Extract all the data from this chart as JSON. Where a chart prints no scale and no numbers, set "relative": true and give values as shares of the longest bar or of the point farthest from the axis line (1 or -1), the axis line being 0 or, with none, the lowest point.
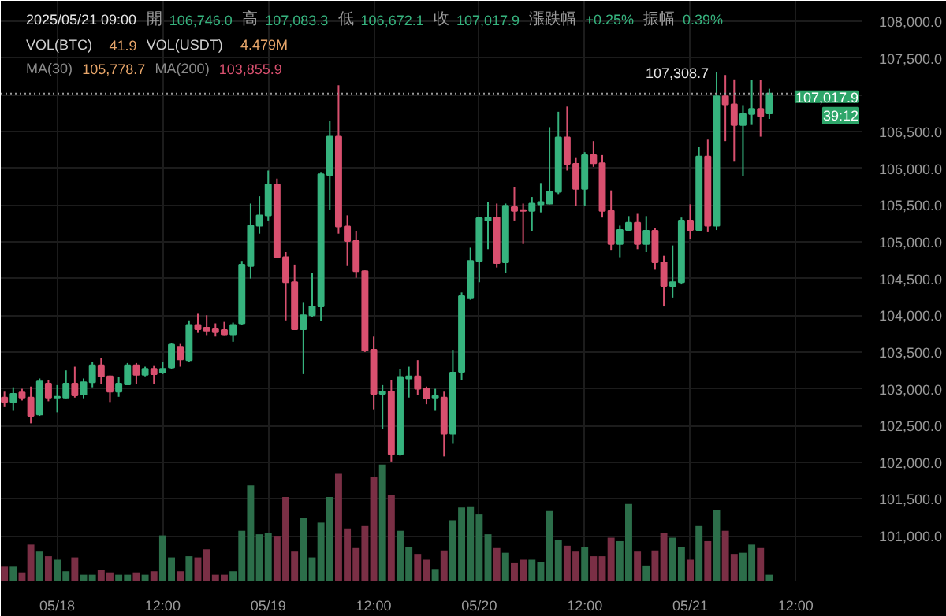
{
  "chart_data": [
    {
      "type": "candlestick",
      "x": [
        "2025-05-17T18:00",
        "2025-05-17T19:00",
        "2025-05-17T20:00",
        "2025-05-17T21:00",
        "2025-05-17T22:00",
        "2025-05-17T23:00",
        "2025-05-18T00:00",
        "2025-05-18T01:00",
        "2025-05-18T02:00",
        "2025-05-18T03:00",
        "2025-05-18T04:00",
        "2025-05-18T05:00",
        "2025-05-18T06:00",
        "2025-05-18T07:00",
        "2025-05-18T08:00",
        "2025-05-18T09:00",
        "2025-05-18T10:00",
        "2025-05-18T11:00",
        "2025-05-18T12:00",
        "2025-05-18T13:00",
        "2025-05-18T14:00",
        "2025-05-18T15:00",
        "2025-05-18T16:00",
        "2025-05-18T17:00",
        "2025-05-18T18:00",
        "2025-05-18T19:00",
        "2025-05-18T20:00",
        "2025-05-18T21:00",
        "2025-05-18T22:00",
        "2025-05-18T23:00",
        "2025-05-19T00:00",
        "2025-05-19T01:00",
        "2025-05-19T02:00",
        "2025-05-19T03:00",
        "2025-05-19T04:00",
        "2025-05-19T05:00",
        "2025-05-19T06:00",
        "2025-05-19T07:00",
        "2025-05-19T08:00",
        "2025-05-19T09:00",
        "2025-05-19T10:00",
        "2025-05-19T11:00",
        "2025-05-19T12:00",
        "2025-05-19T13:00",
        "2025-05-19T14:00",
        "2025-05-19T15:00",
        "2025-05-19T16:00",
        "2025-05-19T17:00",
        "2025-05-19T18:00",
        "2025-05-19T19:00",
        "2025-05-19T20:00",
        "2025-05-19T21:00",
        "2025-05-19T22:00",
        "2025-05-19T23:00",
        "2025-05-20T00:00",
        "2025-05-20T01:00",
        "2025-05-20T02:00",
        "2025-05-20T03:00",
        "2025-05-20T04:00",
        "2025-05-20T05:00",
        "2025-05-20T06:00",
        "2025-05-20T07:00",
        "2025-05-20T08:00",
        "2025-05-20T09:00",
        "2025-05-20T10:00",
        "2025-05-20T11:00",
        "2025-05-20T12:00",
        "2025-05-20T13:00",
        "2025-05-20T14:00",
        "2025-05-20T15:00",
        "2025-05-20T16:00",
        "2025-05-20T17:00",
        "2025-05-20T18:00",
        "2025-05-20T19:00",
        "2025-05-20T20:00",
        "2025-05-20T21:00",
        "2025-05-20T22:00",
        "2025-05-20T23:00",
        "2025-05-21T00:00",
        "2025-05-21T01:00",
        "2025-05-21T02:00",
        "2025-05-21T03:00",
        "2025-05-21T04:00",
        "2025-05-21T05:00",
        "2025-05-21T06:00",
        "2025-05-21T07:00",
        "2025-05-21T08:00",
        "2025-05-21T09:00"
      ],
      "ohlc": [
        [
          102880,
          102960,
          102750,
          102820
        ],
        [
          102820,
          103020,
          102700,
          102930
        ],
        [
          102950,
          103000,
          102840,
          102880
        ],
        [
          102880,
          103030,
          102530,
          102630
        ],
        [
          102650,
          103140,
          102630,
          103100
        ],
        [
          103070,
          103120,
          102830,
          102880
        ],
        [
          102880,
          103050,
          102680,
          102890
        ],
        [
          102880,
          103250,
          102870,
          103070
        ],
        [
          103070,
          103300,
          102880,
          102910
        ],
        [
          102920,
          103140,
          102870,
          103090
        ],
        [
          103090,
          103370,
          103020,
          103320
        ],
        [
          103320,
          103420,
          103070,
          103170
        ],
        [
          103170,
          103180,
          102820,
          102960
        ],
        [
          102960,
          103160,
          102890,
          103070
        ],
        [
          103060,
          103350,
          103050,
          103320
        ],
        [
          103320,
          103350,
          103070,
          103190
        ],
        [
          103190,
          103300,
          103170,
          103270
        ],
        [
          103270,
          103320,
          103060,
          103200
        ],
        [
          103220,
          103360,
          103200,
          103270
        ],
        [
          103290,
          103620,
          103270,
          103600
        ],
        [
          103570,
          103610,
          103300,
          103400
        ],
        [
          103390,
          103930,
          103370,
          103870
        ],
        [
          103870,
          104030,
          103760,
          103810
        ],
        [
          103830,
          104000,
          103730,
          103790
        ],
        [
          103810,
          103890,
          103710,
          103770
        ],
        [
          103800,
          103910,
          103730,
          103740
        ],
        [
          103740,
          103900,
          103640,
          103870
        ],
        [
          103890,
          104740,
          103870,
          104690
        ],
        [
          104670,
          105520,
          104500,
          105220
        ],
        [
          105220,
          105620,
          105110,
          105360
        ],
        [
          105360,
          105970,
          105290,
          105780
        ],
        [
          105780,
          105860,
          104780,
          104790
        ],
        [
          104790,
          104860,
          103930,
          104450
        ],
        [
          104450,
          104690,
          103800,
          103810
        ],
        [
          103810,
          104170,
          103200,
          104000
        ],
        [
          104000,
          104580,
          103980,
          104120
        ],
        [
          104120,
          105950,
          103920,
          105920
        ],
        [
          105910,
          106640,
          105430,
          106430
        ],
        [
          106430,
          107130,
          105110,
          105210
        ],
        [
          105210,
          105360,
          104670,
          105010
        ],
        [
          105010,
          105150,
          104510,
          104600
        ],
        [
          104600,
          104610,
          103500,
          103520
        ],
        [
          103530,
          103710,
          102720,
          102930
        ],
        [
          102930,
          103050,
          102450,
          102960
        ],
        [
          102960,
          103120,
          102010,
          102110
        ],
        [
          102110,
          103270,
          102090,
          103160
        ],
        [
          103140,
          103300,
          102880,
          103170
        ],
        [
          103170,
          103390,
          102910,
          103000
        ],
        [
          103000,
          103030,
          102790,
          102870
        ],
        [
          102880,
          103000,
          102700,
          102900
        ],
        [
          102880,
          102960,
          102080,
          102390
        ],
        [
          102390,
          103530,
          102250,
          103220
        ],
        [
          103230,
          104310,
          103120,
          104260
        ],
        [
          104240,
          104920,
          104210,
          104740
        ],
        [
          104740,
          105330,
          104450,
          105320
        ],
        [
          105290,
          105540,
          104900,
          105330
        ],
        [
          105330,
          105520,
          104650,
          104710
        ],
        [
          104720,
          105520,
          104580,
          105490
        ],
        [
          105470,
          105750,
          105290,
          105420
        ],
        [
          105430,
          105520,
          104970,
          105420
        ],
        [
          105420,
          105610,
          105150,
          105520
        ],
        [
          105510,
          105800,
          105400,
          105540
        ],
        [
          105520,
          106560,
          105510,
          105680
        ],
        [
          105680,
          106770,
          105650,
          106420
        ],
        [
          106420,
          106840,
          105970,
          106060
        ],
        [
          106060,
          106150,
          105490,
          105720
        ],
        [
          105720,
          106220,
          105490,
          106180
        ],
        [
          106180,
          106370,
          106020,
          106070
        ],
        [
          106070,
          106180,
          105330,
          105420
        ],
        [
          105420,
          105700,
          104880,
          104970
        ],
        [
          104970,
          105220,
          104790,
          105160
        ],
        [
          105160,
          105350,
          105150,
          105260
        ],
        [
          105260,
          105380,
          104900,
          104970
        ],
        [
          104970,
          105350,
          104860,
          105150
        ],
        [
          105150,
          105190,
          104620,
          104720
        ],
        [
          104720,
          104810,
          104120,
          104400
        ],
        [
          104400,
          104950,
          104240,
          104450
        ],
        [
          104450,
          105330,
          104420,
          105290
        ],
        [
          105290,
          105510,
          105040,
          105160
        ],
        [
          105160,
          106290,
          105150,
          106160
        ],
        [
          106160,
          106390,
          105140,
          105220
        ],
        [
          105220,
          107308.7,
          105160,
          106980
        ],
        [
          106980,
          107270,
          106370,
          106870
        ],
        [
          106870,
          107210,
          106090,
          106590
        ],
        [
          106590,
          106860,
          105900,
          106740
        ],
        [
          106740,
          107200,
          106590,
          106810
        ],
        [
          106810,
          107200,
          106430,
          106710
        ],
        [
          106746.0,
          107083.3,
          106672.1,
          107017.9
        ]
      ],
      "colors": [
        "#d9506f",
        "#36b37e",
        "#d9506f",
        "#d9506f",
        "#36b37e",
        "#d9506f",
        "#36b37e",
        "#36b37e",
        "#d9506f",
        "#36b37e",
        "#36b37e",
        "#d9506f",
        "#d9506f",
        "#36b37e",
        "#36b37e",
        "#d9506f",
        "#36b37e",
        "#d9506f",
        "#36b37e",
        "#36b37e",
        "#d9506f",
        "#36b37e",
        "#d9506f",
        "#d9506f",
        "#d9506f",
        "#d9506f",
        "#36b37e",
        "#36b37e",
        "#36b37e",
        "#36b37e",
        "#36b37e",
        "#d9506f",
        "#d9506f",
        "#d9506f",
        "#36b37e",
        "#36b37e",
        "#36b37e",
        "#36b37e",
        "#d9506f",
        "#d9506f",
        "#d9506f",
        "#d9506f",
        "#d9506f",
        "#36b37e",
        "#d9506f",
        "#36b37e",
        "#36b37e",
        "#d9506f",
        "#d9506f",
        "#36b37e",
        "#d9506f",
        "#36b37e",
        "#36b37e",
        "#36b37e",
        "#36b37e",
        "#36b37e",
        "#d9506f",
        "#36b37e",
        "#d9506f",
        "#d9506f",
        "#36b37e",
        "#36b37e",
        "#36b37e",
        "#36b37e",
        "#d9506f",
        "#d9506f",
        "#36b37e",
        "#d9506f",
        "#d9506f",
        "#d9506f",
        "#36b37e",
        "#36b37e",
        "#d9506f",
        "#36b37e",
        "#d9506f",
        "#d9506f",
        "#36b37e",
        "#36b37e",
        "#d9506f",
        "#36b37e",
        "#d9506f",
        "#36b37e",
        "#d9506f",
        "#d9506f",
        "#36b37e",
        "#36b37e",
        "#d9506f",
        "#36b37e"
      ],
      "xlim": [
        "2025-05-17T17:35",
        "2025-05-21T19:30"
      ],
      "xticks": [
        {
          "value": "2025-05-18T00:00",
          "label": "05/18"
        },
        {
          "value": "2025-05-18T12:00",
          "label": "12:00"
        },
        {
          "value": "2025-05-19T00:00",
          "label": "05/19"
        },
        {
          "value": "2025-05-19T12:00",
          "label": "12:00"
        },
        {
          "value": "2025-05-20T00:00",
          "label": "05/20"
        },
        {
          "value": "2025-05-20T12:00",
          "label": "12:00"
        },
        {
          "value": "2025-05-21T00:00",
          "label": "05/21"
        },
        {
          "value": "2025-05-21T12:00",
          "label": "12:00"
        }
      ],
      "ylim": [
        100390,
        108280
      ],
      "yticks": [
        {
          "value": 101000,
          "label": "101,000.0"
        },
        {
          "value": 101500,
          "label": "101,500.0"
        },
        {
          "value": 102000,
          "label": "102,000.0"
        },
        {
          "value": 102500,
          "label": "102,500.0"
        },
        {
          "value": 103000,
          "label": "103,000.0"
        },
        {
          "value": 103500,
          "label": "103,500.0"
        },
        {
          "value": 104000,
          "label": "104,000.0"
        },
        {
          "value": 104500,
          "label": "104,500.0"
        },
        {
          "value": 105000,
          "label": "105,000.0"
        },
        {
          "value": 105500,
          "label": "105,500.0"
        },
        {
          "value": 106000,
          "label": "106,000.0"
        },
        {
          "value": 106500,
          "label": "106,500.0"
        },
        {
          "value": 107000,
          "label": null
        },
        {
          "value": 107500,
          "label": "107,500.0"
        },
        {
          "value": 108000,
          "label": "108,000.0"
        }
      ],
      "grid": true,
      "ref_lines": [
        {
          "axis": "y",
          "value": 107017.9,
          "label": "107,017.9",
          "color": "#9a9a9a",
          "line_style": "dotted"
        }
      ],
      "annotations": [
        "2025/05/21 09:00",
        "開",
        "106,746.0",
        "高",
        "107,083.3",
        "低",
        "106,672.1",
        "收",
        "107,017.9",
        "漲跌幅",
        "+0.25%",
        "振幅",
        "0.39%",
        "VOL(BTC)",
        "41.9",
        "VOL(USDT)",
        "4.479M",
        "MA(30)",
        "105,778.7",
        "MA(200)",
        "103,855.9",
        "39:12",
        {
          "text": "107,308.7",
          "x": "2025-05-21T03:00",
          "y": 107308.7
        }
      ]
    },
    {
      "type": "bar",
      "relative": true,
      "tick_labels": false,
      "xlim": [
        "2025-05-17T17:35",
        "2025-05-21T19:30"
      ],
      "x": [
        "2025-05-17T18:00",
        "2025-05-17T19:00",
        "2025-05-17T20:00",
        "2025-05-17T21:00",
        "2025-05-17T22:00",
        "2025-05-17T23:00",
        "2025-05-18T00:00",
        "2025-05-18T01:00",
        "2025-05-18T02:00",
        "2025-05-18T03:00",
        "2025-05-18T04:00",
        "2025-05-18T05:00",
        "2025-05-18T06:00",
        "2025-05-18T07:00",
        "2025-05-18T08:00",
        "2025-05-18T09:00",
        "2025-05-18T10:00",
        "2025-05-18T11:00",
        "2025-05-18T12:00",
        "2025-05-18T13:00",
        "2025-05-18T14:00",
        "2025-05-18T15:00",
        "2025-05-18T16:00",
        "2025-05-18T17:00",
        "2025-05-18T18:00",
        "2025-05-18T19:00",
        "2025-05-18T20:00",
        "2025-05-18T21:00",
        "2025-05-18T22:00",
        "2025-05-18T23:00",
        "2025-05-19T00:00",
        "2025-05-19T01:00",
        "2025-05-19T02:00",
        "2025-05-19T03:00",
        "2025-05-19T04:00",
        "2025-05-19T05:00",
        "2025-05-19T06:00",
        "2025-05-19T07:00",
        "2025-05-19T08:00",
        "2025-05-19T09:00",
        "2025-05-19T10:00",
        "2025-05-19T11:00",
        "2025-05-19T12:00",
        "2025-05-19T13:00",
        "2025-05-19T14:00",
        "2025-05-19T15:00",
        "2025-05-19T16:00",
        "2025-05-19T17:00",
        "2025-05-19T18:00",
        "2025-05-19T19:00",
        "2025-05-19T20:00",
        "2025-05-19T21:00",
        "2025-05-19T22:00",
        "2025-05-19T23:00",
        "2025-05-20T00:00",
        "2025-05-20T01:00",
        "2025-05-20T02:00",
        "2025-05-20T03:00",
        "2025-05-20T04:00",
        "2025-05-20T05:00",
        "2025-05-20T06:00",
        "2025-05-20T07:00",
        "2025-05-20T08:00",
        "2025-05-20T09:00",
        "2025-05-20T10:00",
        "2025-05-20T11:00",
        "2025-05-20T12:00",
        "2025-05-20T13:00",
        "2025-05-20T14:00",
        "2025-05-20T15:00",
        "2025-05-20T16:00",
        "2025-05-20T17:00",
        "2025-05-20T18:00",
        "2025-05-20T19:00",
        "2025-05-20T20:00",
        "2025-05-20T21:00",
        "2025-05-20T22:00",
        "2025-05-20T23:00",
        "2025-05-21T00:00",
        "2025-05-21T01:00",
        "2025-05-21T02:00",
        "2025-05-21T03:00",
        "2025-05-21T04:00",
        "2025-05-21T05:00",
        "2025-05-21T06:00",
        "2025-05-21T07:00",
        "2025-05-21T08:00",
        "2025-05-21T09:00"
      ],
      "values": [
        0.12,
        0.12,
        0.07,
        0.31,
        0.25,
        0.21,
        0.18,
        0.08,
        0.2,
        0.05,
        0.05,
        0.09,
        0.07,
        0.05,
        0.05,
        0.07,
        0.05,
        0.08,
        0.39,
        0.2,
        0.08,
        0.21,
        0.2,
        0.27,
        0.05,
        0.05,
        0.08,
        0.43,
        0.82,
        0.4,
        0.41,
        0.38,
        0.72,
        0.25,
        0.54,
        0.2,
        0.5,
        0.72,
        0.92,
        0.45,
        0.28,
        0.47,
        0.89,
        1,
        0.74,
        0.43,
        0.29,
        0.23,
        0.18,
        0.1,
        0.26,
        0.52,
        0.63,
        0.64,
        0.57,
        0.4,
        0.28,
        0.24,
        0.15,
        0.18,
        0.18,
        0.16,
        0.6,
        0.35,
        0.3,
        0.25,
        0.29,
        0.21,
        0.21,
        0.37,
        0.34,
        0.66,
        0.25,
        0.13,
        0.26,
        0.41,
        0.37,
        0.29,
        0.18,
        0.47,
        0.34,
        0.61,
        0.43,
        0.23,
        0.24,
        0.31,
        0.28,
        0.05
      ],
      "colors": [
        "#7a2f45",
        "#2c6e4a",
        "#7a2f45",
        "#7a2f45",
        "#2c6e4a",
        "#7a2f45",
        "#2c6e4a",
        "#2c6e4a",
        "#7a2f45",
        "#2c6e4a",
        "#2c6e4a",
        "#7a2f45",
        "#7a2f45",
        "#2c6e4a",
        "#2c6e4a",
        "#7a2f45",
        "#2c6e4a",
        "#7a2f45",
        "#2c6e4a",
        "#2c6e4a",
        "#7a2f45",
        "#2c6e4a",
        "#7a2f45",
        "#7a2f45",
        "#7a2f45",
        "#7a2f45",
        "#2c6e4a",
        "#2c6e4a",
        "#2c6e4a",
        "#2c6e4a",
        "#2c6e4a",
        "#7a2f45",
        "#7a2f45",
        "#7a2f45",
        "#2c6e4a",
        "#2c6e4a",
        "#2c6e4a",
        "#2c6e4a",
        "#7a2f45",
        "#7a2f45",
        "#7a2f45",
        "#7a2f45",
        "#7a2f45",
        "#2c6e4a",
        "#7a2f45",
        "#2c6e4a",
        "#2c6e4a",
        "#7a2f45",
        "#7a2f45",
        "#2c6e4a",
        "#7a2f45",
        "#2c6e4a",
        "#2c6e4a",
        "#2c6e4a",
        "#2c6e4a",
        "#2c6e4a",
        "#7a2f45",
        "#2c6e4a",
        "#7a2f45",
        "#7a2f45",
        "#2c6e4a",
        "#2c6e4a",
        "#2c6e4a",
        "#2c6e4a",
        "#7a2f45",
        "#7a2f45",
        "#2c6e4a",
        "#7a2f45",
        "#7a2f45",
        "#7a2f45",
        "#2c6e4a",
        "#2c6e4a",
        "#7a2f45",
        "#2c6e4a",
        "#7a2f45",
        "#7a2f45",
        "#2c6e4a",
        "#2c6e4a",
        "#7a2f45",
        "#2c6e4a",
        "#7a2f45",
        "#2c6e4a",
        "#7a2f45",
        "#7a2f45",
        "#2c6e4a",
        "#2c6e4a",
        "#7a2f45",
        "#2c6e4a"
      ]
    }
  ]
}
